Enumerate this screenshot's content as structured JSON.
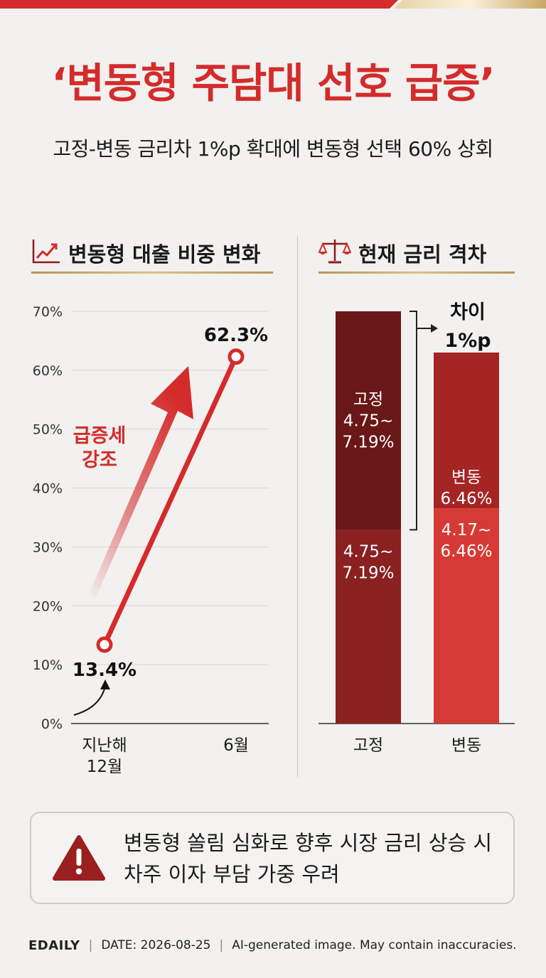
{
  "headline": "‘변동형 주담대 선호 급증’",
  "subtitle": "고정-변동 금리차 1%p 확대에 변동형 선택 60% 상회",
  "colors": {
    "accent_red": "#d42b2b",
    "dark_red": "#7a1a1a",
    "mid_red": "#9a2222",
    "bright_red": "#d63a34",
    "gold_rule": "#c8a56c"
  },
  "left_panel": {
    "title": "변동형 대출 비중 변화",
    "icon": "trend-line-chart-icon"
  },
  "right_panel": {
    "title": "현재 금리 격차",
    "icon": "balance-scale-icon"
  },
  "chart_data": [
    {
      "type": "line",
      "title": "변동형 대출 비중 변화",
      "categories": [
        "지난해\n12월",
        "6월"
      ],
      "series": [
        {
          "values": [
            13.4,
            62.3
          ]
        }
      ],
      "data_labels": [
        "13.4%",
        "62.3%"
      ],
      "ylim": [
        0,
        70
      ],
      "y_ticks": [
        "0%",
        "10%",
        "20%",
        "30%",
        "40%",
        "50%",
        "60%",
        "70%"
      ],
      "grid": true,
      "annotation": "급증세\n강조"
    },
    {
      "type": "bar",
      "title": "현재 금리 격차",
      "categories": [
        "고정",
        "변동"
      ],
      "bars": [
        {
          "category": "고정",
          "segments": [
            {
              "label": "4.75~\n7.19%",
              "share": 0.47
            },
            {
              "label": "고정\n4.75~\n7.19%",
              "share": 0.53
            }
          ],
          "relative_height": 1.0
        },
        {
          "category": "변동",
          "segments": [
            {
              "label": "4.17~\n6.46%",
              "share": 0.58
            },
            {
              "label": "변동\n6.46%",
              "share": 0.42
            }
          ],
          "relative_height": 0.9
        }
      ],
      "annotation": "차이\n1%p"
    }
  ],
  "note": {
    "icon": "warning-triangle-icon",
    "text": "변동형 쏠림 심화로 향후 시장 금리 상승 시\n차주 이자 부담 가중 우려"
  },
  "footer": {
    "brand": "EDAILY",
    "date": "DATE: 2026-08-25",
    "disclaimer": "AI-generated image. May contain inaccuracies."
  }
}
